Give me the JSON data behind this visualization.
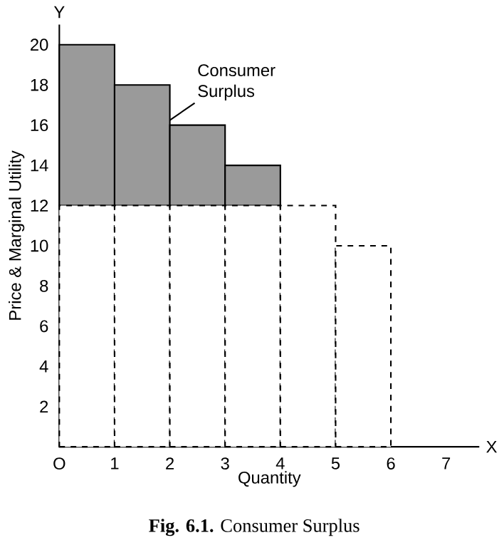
{
  "chart_data": {
    "type": "bar",
    "stacked": true,
    "title": "**Fig. 6.1.** Consumer Surplus",
    "xlabel": "Quantity",
    "ylabel": "Price & Marginal Utility",
    "annotations": [
      "Y",
      "X"
    ],
    "x": [
      0.5,
      1.5,
      2.5,
      3.5,
      4.5,
      5.5
    ],
    "series": [
      {
        "color": "#ffffff",
        "line_style": "dashed",
        "values": [
          12,
          12,
          12,
          12,
          12,
          10
        ]
      },
      {
        "name": "Consumer Surplus",
        "color": "#9a9a9a",
        "values": [
          8,
          6,
          4,
          2,
          null,
          null
        ]
      }
    ],
    "xlim": [
      0,
      7.6
    ],
    "ylim": [
      0,
      21
    ],
    "xticks": [
      {
        "value": 0,
        "label": "O"
      },
      1,
      2,
      3,
      4,
      5,
      6,
      7
    ],
    "yticks": [
      2,
      4,
      6,
      8,
      10,
      12,
      14,
      16,
      18,
      20
    ]
  }
}
